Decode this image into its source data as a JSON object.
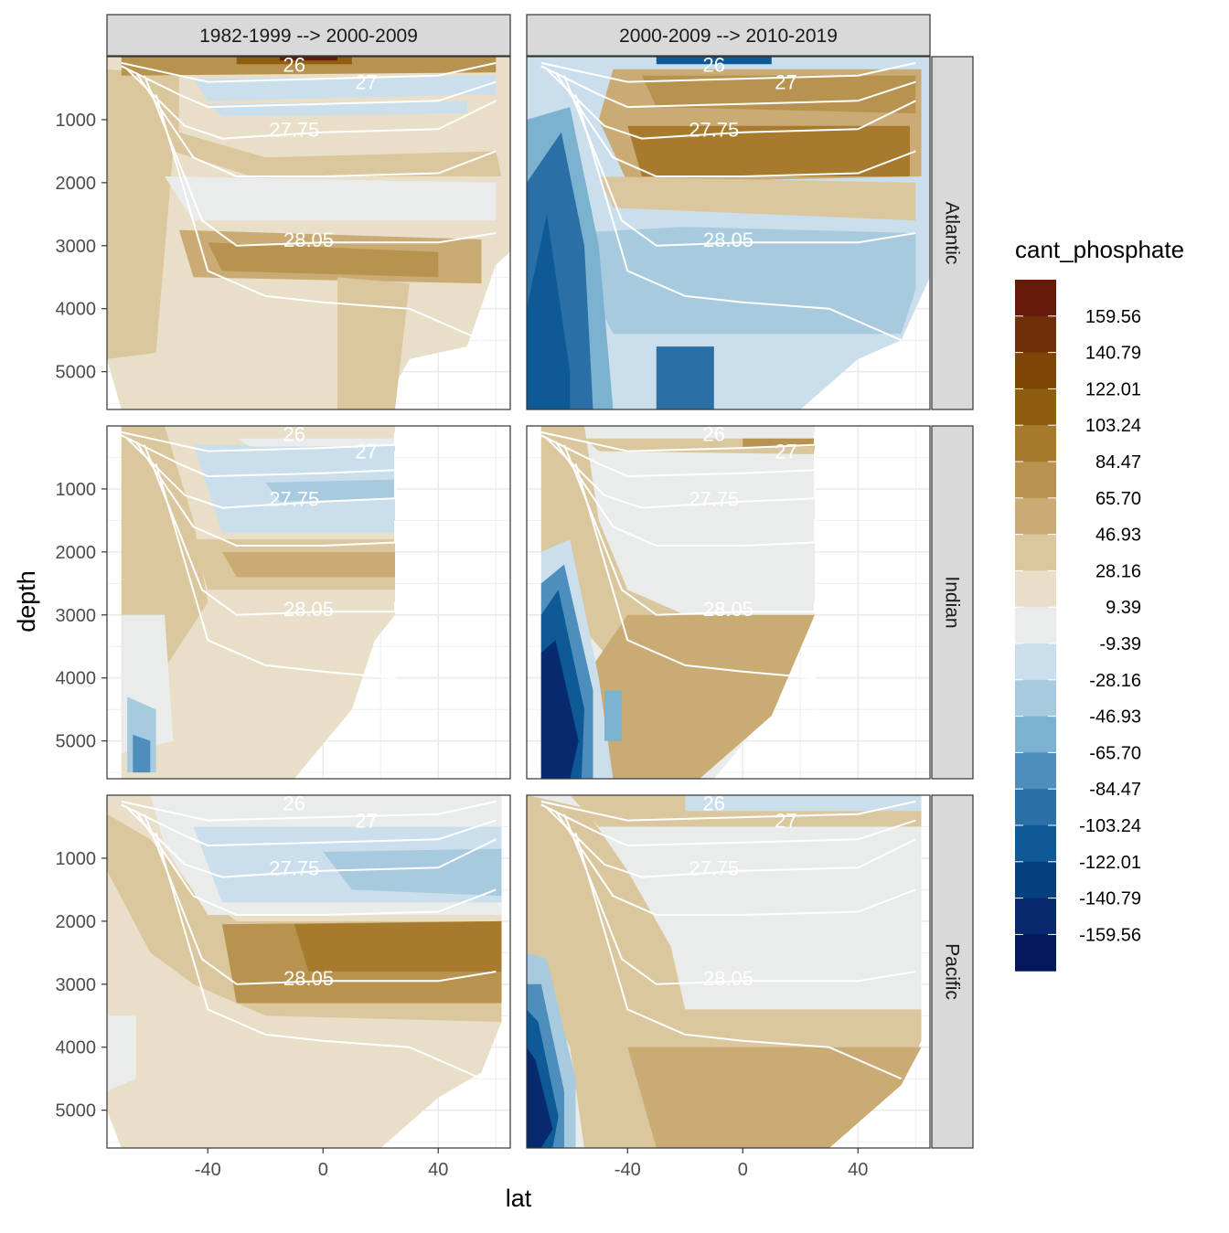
{
  "chart_data": {
    "type": "heatmap",
    "xlabel": "lat",
    "ylabel": "depth",
    "x_ticks": [
      -40,
      0,
      40
    ],
    "y_ticks": [
      1000,
      2000,
      3000,
      4000,
      5000
    ],
    "xlim": [
      -75,
      65
    ],
    "ylim": [
      5600,
      0
    ],
    "y_reversed": true,
    "grid": true,
    "columns": [
      "1982-1999 --> 2000-2009",
      "2000-2009 --> 2010-2019"
    ],
    "rows": [
      "Atlantic",
      "Indian",
      "Pacific"
    ],
    "legend": {
      "title": "cant_phosphate",
      "position": "right",
      "labels": [
        "159.56",
        "140.79",
        "122.01",
        "103.24",
        "84.47",
        "65.70",
        "46.93",
        "28.16",
        "9.39",
        "-9.39",
        "-28.16",
        "-46.93",
        "-65.70",
        "-84.47",
        "-103.24",
        "-122.01",
        "-140.79",
        "-159.56"
      ],
      "colors": [
        "#67190a",
        "#6f2f08",
        "#7f4506",
        "#8f5d0e",
        "#a77a2e",
        "#b8924f",
        "#c9ab73",
        "#dac79d",
        "#e9dfc9",
        "#e9ecea",
        "#cadfeb",
        "#a8cadf",
        "#7ab2d0",
        "#4d8ebd",
        "#2a70a6",
        "#0e5a96",
        "#063f7e",
        "#062a6d",
        "#03175a"
      ]
    },
    "contour_labels": [
      "26",
      "27",
      "27.75",
      "28.05"
    ],
    "panels": [
      {
        "row": "Atlantic",
        "column": "1982-1999 --> 2000-2009",
        "lat_range": [
          -75,
          65
        ],
        "max_depth": 5600,
        "dominant_range": "28.16 to 65.70"
      },
      {
        "row": "Atlantic",
        "column": "2000-2009 --> 2010-2019",
        "lat_range": [
          -75,
          65
        ],
        "max_depth": 5600,
        "dominant_range": "-103.24 to 65.70"
      },
      {
        "row": "Indian",
        "column": "1982-1999 --> 2000-2009",
        "lat_range": [
          -70,
          25
        ],
        "max_depth": 5600,
        "dominant_range": "-46.93 to 65.70"
      },
      {
        "row": "Indian",
        "column": "2000-2009 --> 2010-2019",
        "lat_range": [
          -70,
          25
        ],
        "max_depth": 5600,
        "dominant_range": "-159.56 to 46.93"
      },
      {
        "row": "Pacific",
        "column": "1982-1999 --> 2000-2009",
        "lat_range": [
          -75,
          62
        ],
        "max_depth": 5600,
        "dominant_range": "-46.93 to 65.70"
      },
      {
        "row": "Pacific",
        "column": "2000-2009 --> 2010-2019",
        "lat_range": [
          -75,
          62
        ],
        "max_depth": 5600,
        "dominant_range": "-140.79 to 46.93"
      }
    ]
  }
}
